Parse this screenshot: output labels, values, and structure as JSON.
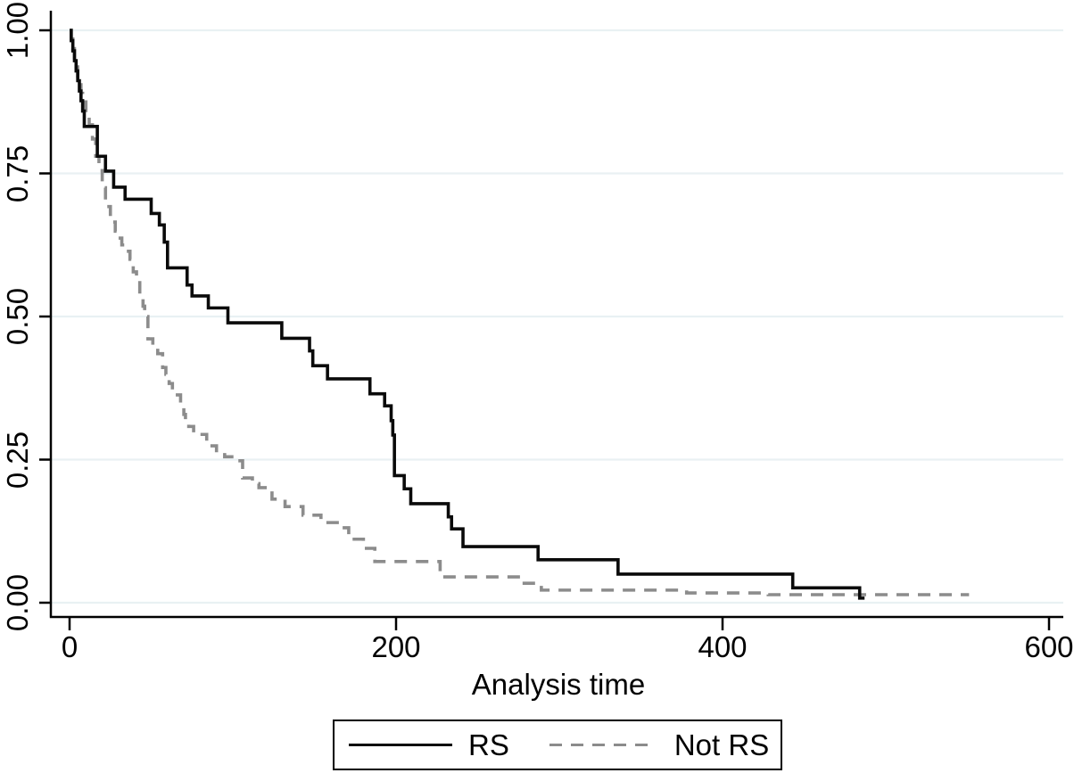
{
  "chart_data": {
    "type": "line",
    "subtype": "kaplan-meier-survival-step",
    "title": "",
    "xlabel": "Analysis time",
    "ylabel": "",
    "xlim": [
      0,
      600
    ],
    "ylim": [
      0.0,
      1.0
    ],
    "grid": "horizontal",
    "legend_position": "bottom-center",
    "x_ticks": [
      "0",
      "200",
      "400",
      "600"
    ],
    "x_tick_values": [
      0,
      200,
      400,
      600
    ],
    "y_ticks": [
      "0.00",
      "0.25",
      "0.50",
      "0.75",
      "1.00"
    ],
    "y_tick_values": [
      0,
      0.25,
      0.5,
      0.75,
      1
    ],
    "series": [
      {
        "name": "RS",
        "style": "solid",
        "color": "#0a0a0a",
        "end": 487,
        "points": [
          [
            0,
            1.0
          ],
          [
            1,
            0.982
          ],
          [
            2,
            0.964
          ],
          [
            3,
            0.947
          ],
          [
            4,
            0.929
          ],
          [
            5,
            0.912
          ],
          [
            6,
            0.894
          ],
          [
            7,
            0.877
          ],
          [
            8,
            0.859
          ],
          [
            9,
            0.832
          ],
          [
            17,
            0.78
          ],
          [
            22,
            0.754
          ],
          [
            27,
            0.726
          ],
          [
            34,
            0.705
          ],
          [
            50,
            0.68
          ],
          [
            55,
            0.66
          ],
          [
            58,
            0.63
          ],
          [
            60,
            0.585
          ],
          [
            72,
            0.555
          ],
          [
            75,
            0.536
          ],
          [
            85,
            0.515
          ],
          [
            97,
            0.489
          ],
          [
            130,
            0.462
          ],
          [
            147,
            0.44
          ],
          [
            149,
            0.414
          ],
          [
            158,
            0.391
          ],
          [
            184,
            0.365
          ],
          [
            193,
            0.344
          ],
          [
            197,
            0.318
          ],
          [
            198,
            0.293
          ],
          [
            199,
            0.222
          ],
          [
            205,
            0.199
          ],
          [
            209,
            0.173
          ],
          [
            232,
            0.15
          ],
          [
            234,
            0.129
          ],
          [
            241,
            0.098
          ],
          [
            287,
            0.075
          ],
          [
            336,
            0.05
          ],
          [
            443,
            0.026
          ],
          [
            484,
            0.008
          ]
        ]
      },
      {
        "name": "Not RS",
        "style": "dashed",
        "color": "#8c8c8c",
        "end": 551,
        "points": [
          [
            0,
            1.0
          ],
          [
            1,
            0.985
          ],
          [
            2,
            0.968
          ],
          [
            3,
            0.952
          ],
          [
            4,
            0.936
          ],
          [
            5,
            0.92
          ],
          [
            6,
            0.905
          ],
          [
            7,
            0.89
          ],
          [
            8,
            0.875
          ],
          [
            10,
            0.855
          ],
          [
            12,
            0.835
          ],
          [
            14,
            0.81
          ],
          [
            16,
            0.78
          ],
          [
            18,
            0.755
          ],
          [
            20,
            0.725
          ],
          [
            22,
            0.692
          ],
          [
            25,
            0.665
          ],
          [
            28,
            0.649
          ],
          [
            30,
            0.637
          ],
          [
            32,
            0.625
          ],
          [
            34,
            0.614
          ],
          [
            37,
            0.6
          ],
          [
            39,
            0.578
          ],
          [
            41,
            0.567
          ],
          [
            43,
            0.535
          ],
          [
            45,
            0.518
          ],
          [
            46,
            0.5
          ],
          [
            48,
            0.461
          ],
          [
            51,
            0.445
          ],
          [
            54,
            0.435
          ],
          [
            57,
            0.411
          ],
          [
            59,
            0.399
          ],
          [
            61,
            0.383
          ],
          [
            63,
            0.372
          ],
          [
            65,
            0.363
          ],
          [
            68,
            0.347
          ],
          [
            70,
            0.329
          ],
          [
            71,
            0.318
          ],
          [
            73,
            0.308
          ],
          [
            76,
            0.294
          ],
          [
            84,
            0.274
          ],
          [
            90,
            0.262
          ],
          [
            95,
            0.255
          ],
          [
            101,
            0.248
          ],
          [
            106,
            0.218
          ],
          [
            112,
            0.208
          ],
          [
            116,
            0.201
          ],
          [
            124,
            0.181
          ],
          [
            132,
            0.168
          ],
          [
            143,
            0.153
          ],
          [
            154,
            0.14
          ],
          [
            165,
            0.131
          ],
          [
            171,
            0.111
          ],
          [
            180,
            0.095
          ],
          [
            187,
            0.072
          ],
          [
            227,
            0.045
          ],
          [
            276,
            0.034
          ],
          [
            289,
            0.022
          ],
          [
            378,
            0.017
          ],
          [
            428,
            0.014
          ]
        ]
      }
    ]
  },
  "colors": {
    "background": "#ffffff",
    "gridline": "#e9f1f3",
    "axis": "#000000",
    "rs_line": "#0a0a0a",
    "not_rs_line": "#8c8c8c"
  }
}
